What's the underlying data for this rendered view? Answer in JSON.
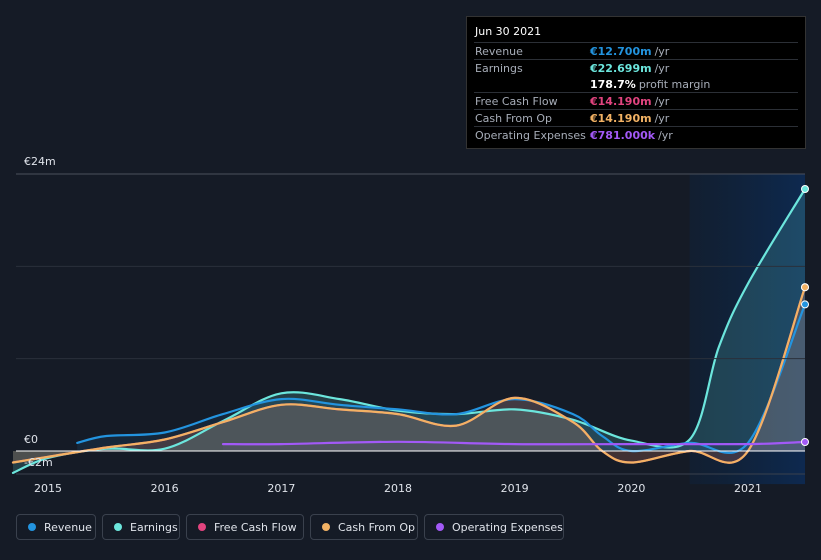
{
  "tooltip": {
    "date": "Jun 30 2021",
    "rows": [
      {
        "label": "Revenue",
        "value": "€12.700m",
        "unit": "/yr",
        "color": "#2394df"
      },
      {
        "label": "Earnings",
        "value": "€22.699m",
        "unit": "/yr",
        "color": "#6ce6dd"
      },
      {
        "label": "",
        "value": "178.7%",
        "unit": "profit margin",
        "color": "#ffffff"
      },
      {
        "label": "Free Cash Flow",
        "value": "€14.190m",
        "unit": "/yr",
        "color": "#e2447f"
      },
      {
        "label": "Cash From Op",
        "value": "€14.190m",
        "unit": "/yr",
        "color": "#f2b264"
      },
      {
        "label": "Operating Expenses",
        "value": "€781.000k",
        "unit": "/yr",
        "color": "#a259f7"
      }
    ]
  },
  "legend": [
    {
      "label": "Revenue",
      "color": "#2394df"
    },
    {
      "label": "Earnings",
      "color": "#6ce6dd"
    },
    {
      "label": "Free Cash Flow",
      "color": "#e2447f"
    },
    {
      "label": "Cash From Op",
      "color": "#f2b264"
    },
    {
      "label": "Operating Expenses",
      "color": "#a259f7"
    }
  ],
  "chart_data": {
    "type": "line",
    "y_unit": "€m",
    "ylim": [
      -2,
      24
    ],
    "y_tick_labels": [
      "€24m",
      "€0",
      "-€2m"
    ],
    "y_tick_values": [
      24,
      0,
      -2
    ],
    "x_tick_labels": [
      "2015",
      "2016",
      "2017",
      "2018",
      "2019",
      "2020",
      "2021"
    ],
    "x_tick_values": [
      2015,
      2016,
      2017,
      2018,
      2019,
      2020,
      2021
    ],
    "xlim": [
      2014.7,
      2021.5
    ],
    "forecast_shade_start": 2020.5,
    "grid": true,
    "legend_position": "bottom",
    "series": [
      {
        "name": "Revenue",
        "color": "#2394df",
        "x": [
          2015.25,
          2015.5,
          2016.0,
          2016.5,
          2017.0,
          2017.5,
          2018.0,
          2018.5,
          2019.0,
          2019.5,
          2019.75,
          2020.0,
          2020.5,
          2021.0,
          2021.5
        ],
        "y": [
          0.7,
          1.3,
          1.6,
          3.2,
          4.5,
          4.0,
          3.6,
          3.2,
          4.5,
          3.2,
          1.3,
          0.0,
          0.7,
          0.7,
          12.7
        ]
      },
      {
        "name": "Earnings",
        "color": "#6ce6dd",
        "x": [
          2014.7,
          2015.0,
          2015.5,
          2016.0,
          2016.5,
          2017.0,
          2017.5,
          2018.0,
          2018.5,
          2019.0,
          2019.5,
          2020.0,
          2020.5,
          2020.75,
          2021.0,
          2021.5
        ],
        "y": [
          -1.9,
          -0.6,
          0.2,
          0.2,
          2.6,
          5.0,
          4.5,
          3.5,
          3.2,
          3.6,
          2.7,
          0.9,
          1.0,
          9.0,
          14.5,
          22.7
        ]
      },
      {
        "name": "Free Cash Flow",
        "color": "#e2447f",
        "x": [
          2014.7,
          2015.0,
          2015.5,
          2016.0,
          2016.5,
          2017.0,
          2017.5,
          2018.0,
          2018.5,
          2019.0,
          2019.5,
          2019.75,
          2020.0,
          2020.5,
          2021.0,
          2021.5
        ],
        "y": [
          -1.0,
          -0.5,
          0.3,
          1.0,
          2.5,
          4.0,
          3.6,
          3.2,
          2.2,
          4.6,
          2.5,
          0.0,
          -1.0,
          0.0,
          0.0,
          14.19
        ]
      },
      {
        "name": "Cash From Op",
        "color": "#f2b264",
        "x": [
          2014.7,
          2015.0,
          2015.5,
          2016.0,
          2016.5,
          2017.0,
          2017.5,
          2018.0,
          2018.5,
          2019.0,
          2019.5,
          2019.75,
          2020.0,
          2020.5,
          2021.0,
          2021.5
        ],
        "y": [
          -1.0,
          -0.5,
          0.3,
          1.0,
          2.5,
          4.0,
          3.6,
          3.2,
          2.2,
          4.6,
          2.5,
          0.0,
          -1.0,
          0.0,
          0.0,
          14.19
        ]
      },
      {
        "name": "Operating Expenses",
        "color": "#a259f7",
        "x": [
          2016.5,
          2017.0,
          2018.0,
          2019.0,
          2020.0,
          2021.0,
          2021.5
        ],
        "y": [
          0.6,
          0.6,
          0.8,
          0.6,
          0.6,
          0.6,
          0.78
        ]
      }
    ]
  }
}
